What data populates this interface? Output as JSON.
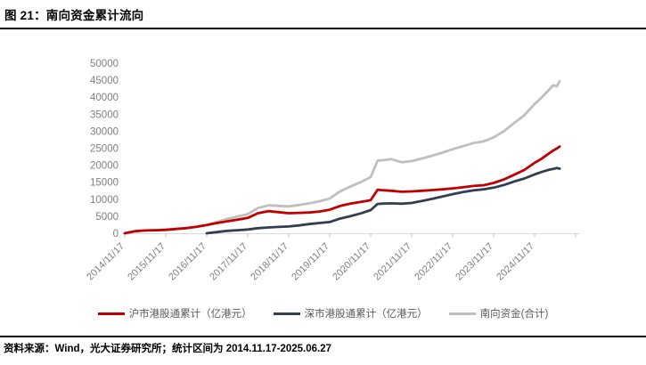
{
  "title": "图 21：南向资金累计流向",
  "footer": "资料来源：Wind，光大证券研究所；统计区间为 2014.11.17-2025.06.27",
  "colors": {
    "shanghai": "#c00000",
    "shenzhen": "#333f50",
    "total": "#bfbfbf",
    "axis_text": "#7f7f7f",
    "axis_line": "#d9d9d9",
    "tick_mark": "#bfbfbf",
    "legend_text": "#595959"
  },
  "chart_data": {
    "type": "line",
    "title": "",
    "xlabel": "",
    "ylabel": "",
    "grid": false,
    "legend_position": "bottom",
    "ylim": [
      0,
      50000
    ],
    "y_tick_step": 5000,
    "x_tick_labels": [
      "2014/11/17",
      "2015/11/17",
      "2016/11/17",
      "2017/11/17",
      "2018/11/17",
      "2019/11/17",
      "2020/11/17",
      "2021/11/17",
      "2022/11/17",
      "2023/11/17",
      "2024/11/17"
    ],
    "x_tick_years": [
      2014.88,
      2015.88,
      2016.88,
      2017.88,
      2018.88,
      2019.88,
      2020.88,
      2021.88,
      2022.88,
      2023.88,
      2024.88
    ],
    "x": [
      2014.88,
      2015.13,
      2015.38,
      2015.63,
      2015.88,
      2016.13,
      2016.38,
      2016.63,
      2016.88,
      2017.13,
      2017.38,
      2017.63,
      2017.88,
      2018.13,
      2018.38,
      2018.63,
      2018.88,
      2019.13,
      2019.38,
      2019.63,
      2019.88,
      2020.13,
      2020.38,
      2020.63,
      2020.88,
      2021.05,
      2021.13,
      2021.38,
      2021.63,
      2021.88,
      2022.13,
      2022.38,
      2022.63,
      2022.88,
      2023.13,
      2023.38,
      2023.63,
      2023.88,
      2024.13,
      2024.38,
      2024.63,
      2024.88,
      2025.05,
      2025.21,
      2025.33,
      2025.42,
      2025.49
    ],
    "series": [
      {
        "name": "南向资金(合计)",
        "color_key": "total",
        "values": [
          0,
          600,
          800,
          900,
          1000,
          1250,
          1500,
          1900,
          2400,
          3350,
          4200,
          4900,
          5600,
          7400,
          8200,
          8050,
          7900,
          8300,
          8800,
          9400,
          10200,
          12300,
          13700,
          15000,
          16500,
          21400,
          21400,
          21800,
          20900,
          21200,
          22000,
          22800,
          23700,
          24700,
          25600,
          26500,
          27000,
          28200,
          30000,
          32400,
          34700,
          38000,
          39900,
          41900,
          43500,
          43200,
          44700
        ]
      },
      {
        "name": "深市港股通累计（亿港元）",
        "color_key": "shenzhen",
        "values": [
          null,
          null,
          null,
          null,
          null,
          null,
          null,
          null,
          0,
          350,
          700,
          900,
          1100,
          1500,
          1700,
          1850,
          2000,
          2300,
          2700,
          3000,
          3300,
          4300,
          5000,
          5800,
          6800,
          8600,
          8700,
          8800,
          8700,
          8900,
          9500,
          10100,
          10800,
          11500,
          12100,
          12600,
          12900,
          13400,
          14200,
          15200,
          16100,
          17300,
          18000,
          18600,
          18900,
          19200,
          19000
        ]
      },
      {
        "name": "沪市港股通累计（亿港元）",
        "color_key": "shanghai",
        "values": [
          0,
          600,
          800,
          900,
          1000,
          1250,
          1500,
          1900,
          2400,
          3000,
          3500,
          4000,
          4500,
          5900,
          6500,
          6200,
          5900,
          6000,
          6100,
          6400,
          6900,
          8000,
          8700,
          9200,
          9700,
          12800,
          12700,
          12500,
          12200,
          12300,
          12500,
          12700,
          12900,
          13200,
          13500,
          13900,
          14100,
          14800,
          15800,
          17200,
          18600,
          20700,
          21900,
          23300,
          24300,
          24900,
          25500
        ]
      }
    ],
    "legend_order": [
      "沪市港股通累计（亿港元）",
      "深市港股通累计（亿港元）",
      "南向资金(合计)"
    ]
  }
}
